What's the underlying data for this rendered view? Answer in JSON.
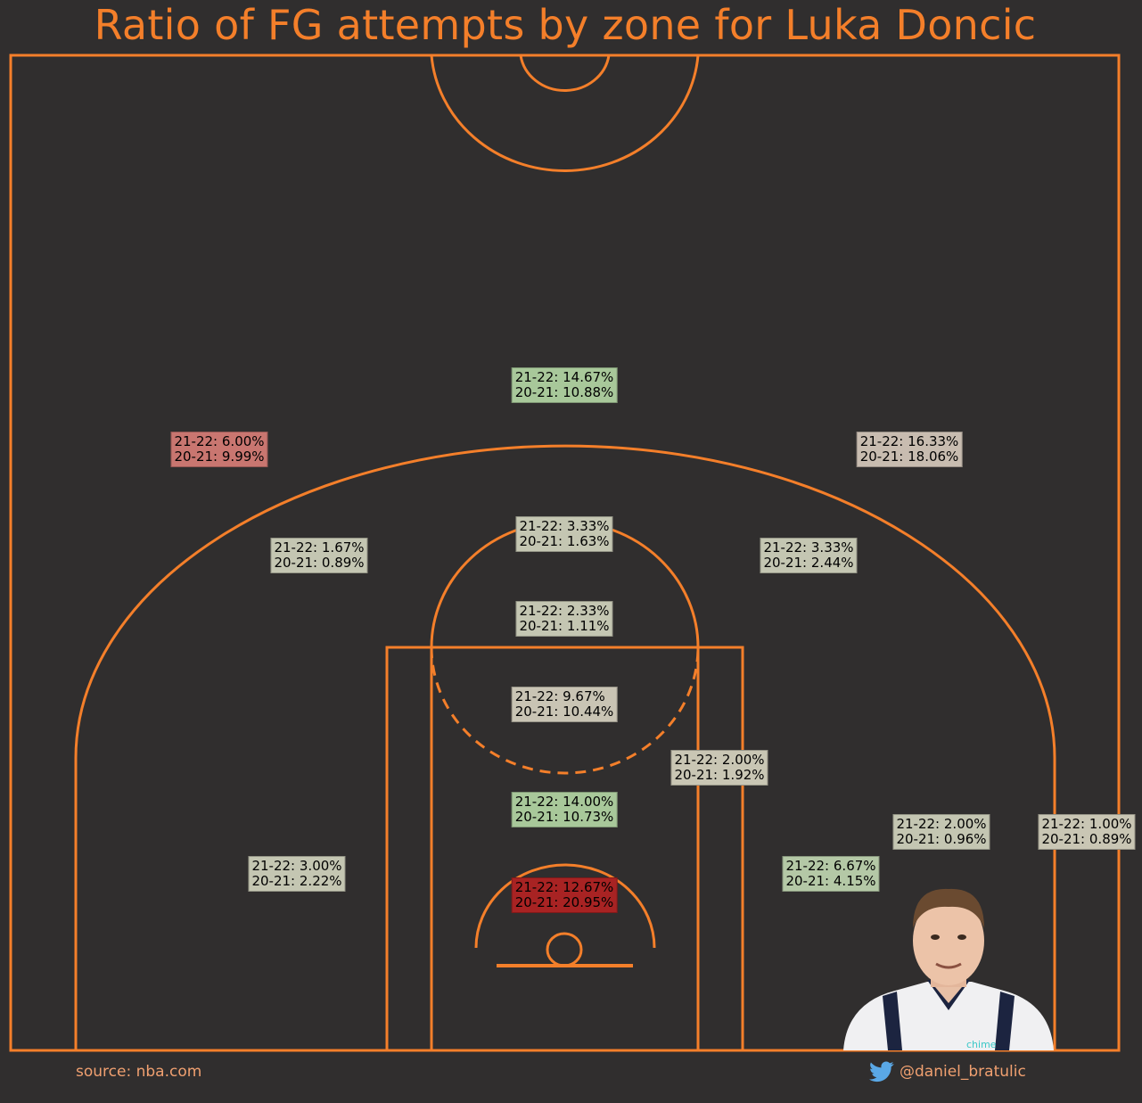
{
  "title": "Ratio of FG attempts by zone for Luka Doncic",
  "footer": {
    "source": "source: nba.com",
    "twitter": "@daniel_bratulic"
  },
  "colors": {
    "background": "#302e2e",
    "court_lines": "#f47f2a",
    "increase": "#a8c89a",
    "neutral": "#c9c4b4",
    "decrease_light": "#c8bcb0",
    "decrease_medium": "#c97670",
    "decrease_strong": "#a82323",
    "twitter_icon": "#5aa8e6"
  },
  "icons": [
    "twitter-icon",
    "player-photo"
  ],
  "chart_data": {
    "type": "table",
    "title": "Ratio of FG attempts by zone for Luka Doncic",
    "series_names": [
      "21-22",
      "20-21"
    ],
    "zones": [
      {
        "id": "top-above-break-3",
        "text_a": "21-22: 14.67%",
        "text_b": "20-21: 10.88%",
        "s2122": 14.67,
        "s2021": 10.88,
        "color": "#a8c89a"
      },
      {
        "id": "left-wing-above-break-3",
        "text_a": "21-22: 6.00%",
        "text_b": "20-21: 9.99%",
        "s2122": 6.0,
        "s2021": 9.99,
        "color": "#c97670"
      },
      {
        "id": "right-wing-above-break-3",
        "text_a": "21-22: 16.33%",
        "text_b": "20-21: 18.06%",
        "s2122": 16.33,
        "s2021": 18.06,
        "color": "#c8bcb0"
      },
      {
        "id": "top-key-midrange",
        "text_a": "21-22: 3.33%",
        "text_b": "20-21: 1.63%",
        "s2122": 3.33,
        "s2021": 1.63,
        "color": "#c4c6b2"
      },
      {
        "id": "left-wing-midrange",
        "text_a": "21-22: 1.67%",
        "text_b": "20-21: 0.89%",
        "s2122": 1.67,
        "s2021": 0.89,
        "color": "#c4c6b2"
      },
      {
        "id": "right-wing-midrange",
        "text_a": "21-22: 3.33%",
        "text_b": "20-21: 2.44%",
        "s2122": 3.33,
        "s2021": 2.44,
        "color": "#c4c6b2"
      },
      {
        "id": "free-throw-line",
        "text_a": "21-22: 2.33%",
        "text_b": "20-21: 1.11%",
        "s2122": 2.33,
        "s2021": 1.11,
        "color": "#c4c6b2"
      },
      {
        "id": "paint-upper",
        "text_a": "21-22: 9.67%",
        "text_b": "20-21: 10.44%",
        "s2122": 9.67,
        "s2021": 10.44,
        "color": "#c9c4b4"
      },
      {
        "id": "right-elbow-baseline-mid",
        "text_a": "21-22: 2.00%",
        "text_b": "20-21: 1.92%",
        "s2122": 2.0,
        "s2021": 1.92,
        "color": "#c9c6b4"
      },
      {
        "id": "paint-non-ra",
        "text_a": "21-22: 14.00%",
        "text_b": "20-21: 10.73%",
        "s2122": 14.0,
        "s2021": 10.73,
        "color": "#a8c89a"
      },
      {
        "id": "right-baseline-mid-deep",
        "text_a": "21-22: 2.00%",
        "text_b": "20-21: 0.96%",
        "s2122": 2.0,
        "s2021": 0.96,
        "color": "#c4c6b2"
      },
      {
        "id": "right-corner-3",
        "text_a": "21-22: 1.00%",
        "text_b": "20-21: 0.89%",
        "s2122": 1.0,
        "s2021": 0.89,
        "color": "#c9c6b4"
      },
      {
        "id": "left-baseline-mid",
        "text_a": "21-22: 3.00%",
        "text_b": "20-21: 2.22%",
        "s2122": 3.0,
        "s2021": 2.22,
        "color": "#c4c6b2"
      },
      {
        "id": "right-baseline-mid",
        "text_a": "21-22: 6.67%",
        "text_b": "20-21: 4.15%",
        "s2122": 6.67,
        "s2021": 4.15,
        "color": "#b4c8a6"
      },
      {
        "id": "restricted-area",
        "text_a": "21-22: 12.67%",
        "text_b": "20-21: 20.95%",
        "s2122": 12.67,
        "s2021": 20.95,
        "color": "#a82323"
      }
    ]
  }
}
